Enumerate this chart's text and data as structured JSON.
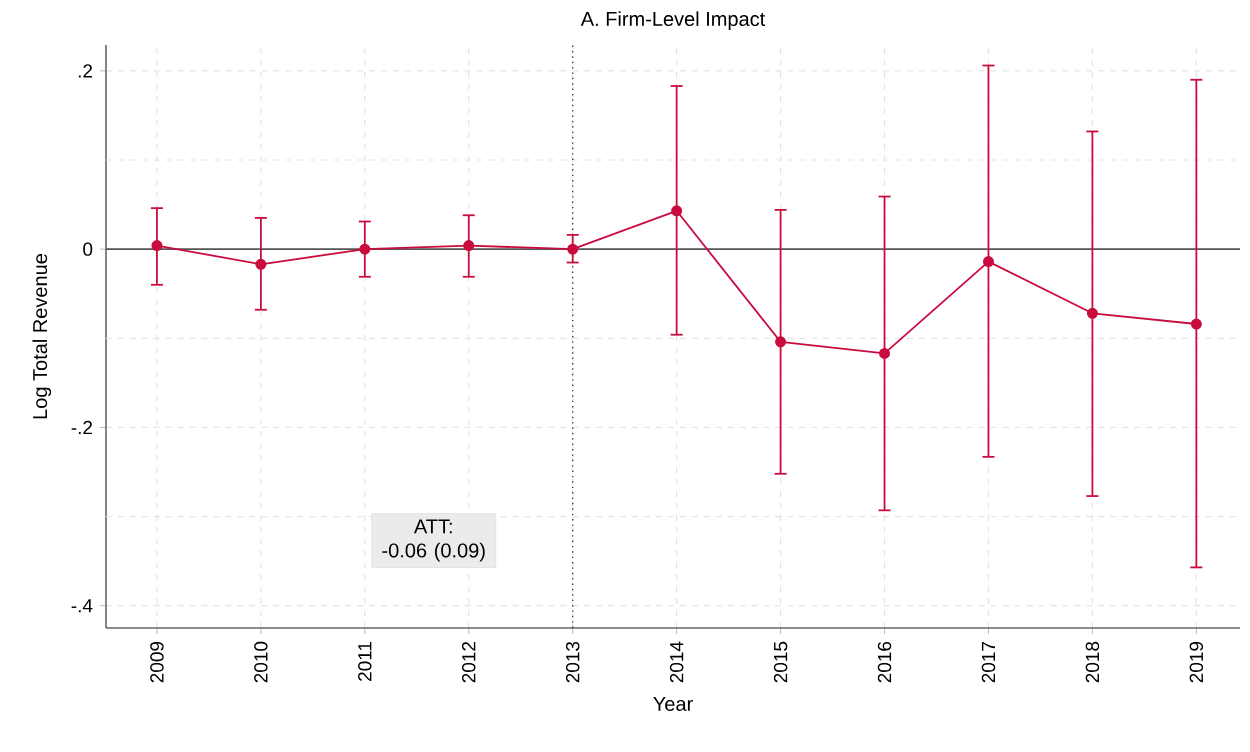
{
  "chart_data": {
    "type": "line",
    "title": "A. Firm-Level Impact",
    "xlabel": "Year",
    "ylabel": "Log Total Revenue",
    "x": [
      2009,
      2010,
      2011,
      2012,
      2013,
      2014,
      2015,
      2016,
      2017,
      2018,
      2019
    ],
    "series": [
      {
        "color": "#c90b3e",
        "values": [
          0.004,
          -0.017,
          0,
          0.004,
          0,
          0.043,
          -0.104,
          -0.117,
          -0.014,
          -0.072,
          -0.084
        ],
        "errors": [
          [
            -0.04,
            0.046
          ],
          [
            -0.068,
            0.035
          ],
          [
            -0.031,
            0.031
          ],
          [
            -0.031,
            0.038
          ],
          [
            -0.015,
            0.016
          ],
          [
            -0.096,
            0.183
          ],
          [
            -0.252,
            0.044
          ],
          [
            -0.293,
            0.059
          ],
          [
            -0.233,
            0.206
          ],
          [
            -0.277,
            0.132
          ],
          [
            -0.357,
            0.19
          ]
        ]
      }
    ],
    "xlim": [
      2008.51,
      2019.42
    ],
    "ylim": [
      -0.425,
      0.229
    ],
    "xticks": [
      2009,
      2010,
      2011,
      2012,
      2013,
      2014,
      2015,
      2016,
      2017,
      2018,
      2019
    ],
    "yticks": [
      {
        "value": -0.4,
        "label": "-.4"
      },
      {
        "value": -0.3,
        "label": null
      },
      {
        "value": -0.2,
        "label": "-.2"
      },
      {
        "value": -0.1,
        "label": null
      },
      {
        "value": 0,
        "label": "0"
      },
      {
        "value": 0.1,
        "label": null
      },
      {
        "value": 0.2,
        "label": ".2"
      }
    ],
    "ref_lines": [
      {
        "axis": "y",
        "value": 0,
        "color": "#555555",
        "line_style": "solid"
      },
      {
        "axis": "x",
        "value": 2013,
        "color": "#444444",
        "line_style": "dotted"
      }
    ],
    "annotations": [
      "ATT:\n-0.06 (0.09)"
    ],
    "grid": true,
    "marker": "circle",
    "line_style": "solid"
  }
}
